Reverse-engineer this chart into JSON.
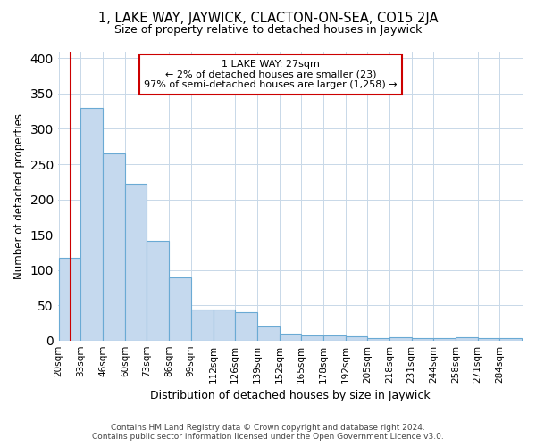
{
  "title": "1, LAKE WAY, JAYWICK, CLACTON-ON-SEA, CO15 2JA",
  "subtitle": "Size of property relative to detached houses in Jaywick",
  "xlabel": "Distribution of detached houses by size in Jaywick",
  "ylabel": "Number of detached properties",
  "bar_color": "#c5d9ee",
  "bar_edge_color": "#6aaad4",
  "categories": [
    "20sqm",
    "33sqm",
    "46sqm",
    "60sqm",
    "73sqm",
    "86sqm",
    "99sqm",
    "112sqm",
    "126sqm",
    "139sqm",
    "152sqm",
    "165sqm",
    "178sqm",
    "192sqm",
    "205sqm",
    "218sqm",
    "231sqm",
    "244sqm",
    "258sqm",
    "271sqm",
    "284sqm"
  ],
  "values": [
    117,
    330,
    265,
    222,
    141,
    90,
    44,
    44,
    40,
    20,
    10,
    7,
    7,
    6,
    4,
    5,
    4,
    4,
    5,
    4,
    3
  ],
  "property_size": 27,
  "annotation_line1": "1 LAKE WAY: 27sqm",
  "annotation_line2": "← 2% of detached houses are smaller (23)",
  "annotation_line3": "97% of semi-detached houses are larger (1,258) →",
  "vline_color": "#cc0000",
  "annotation_box_edge": "#cc0000",
  "background_color": "#ffffff",
  "grid_color": "#c8d8e8",
  "footer1": "Contains HM Land Registry data © Crown copyright and database right 2024.",
  "footer2": "Contains public sector information licensed under the Open Government Licence v3.0.",
  "ylim": [
    0,
    410
  ],
  "bin_width": 13
}
